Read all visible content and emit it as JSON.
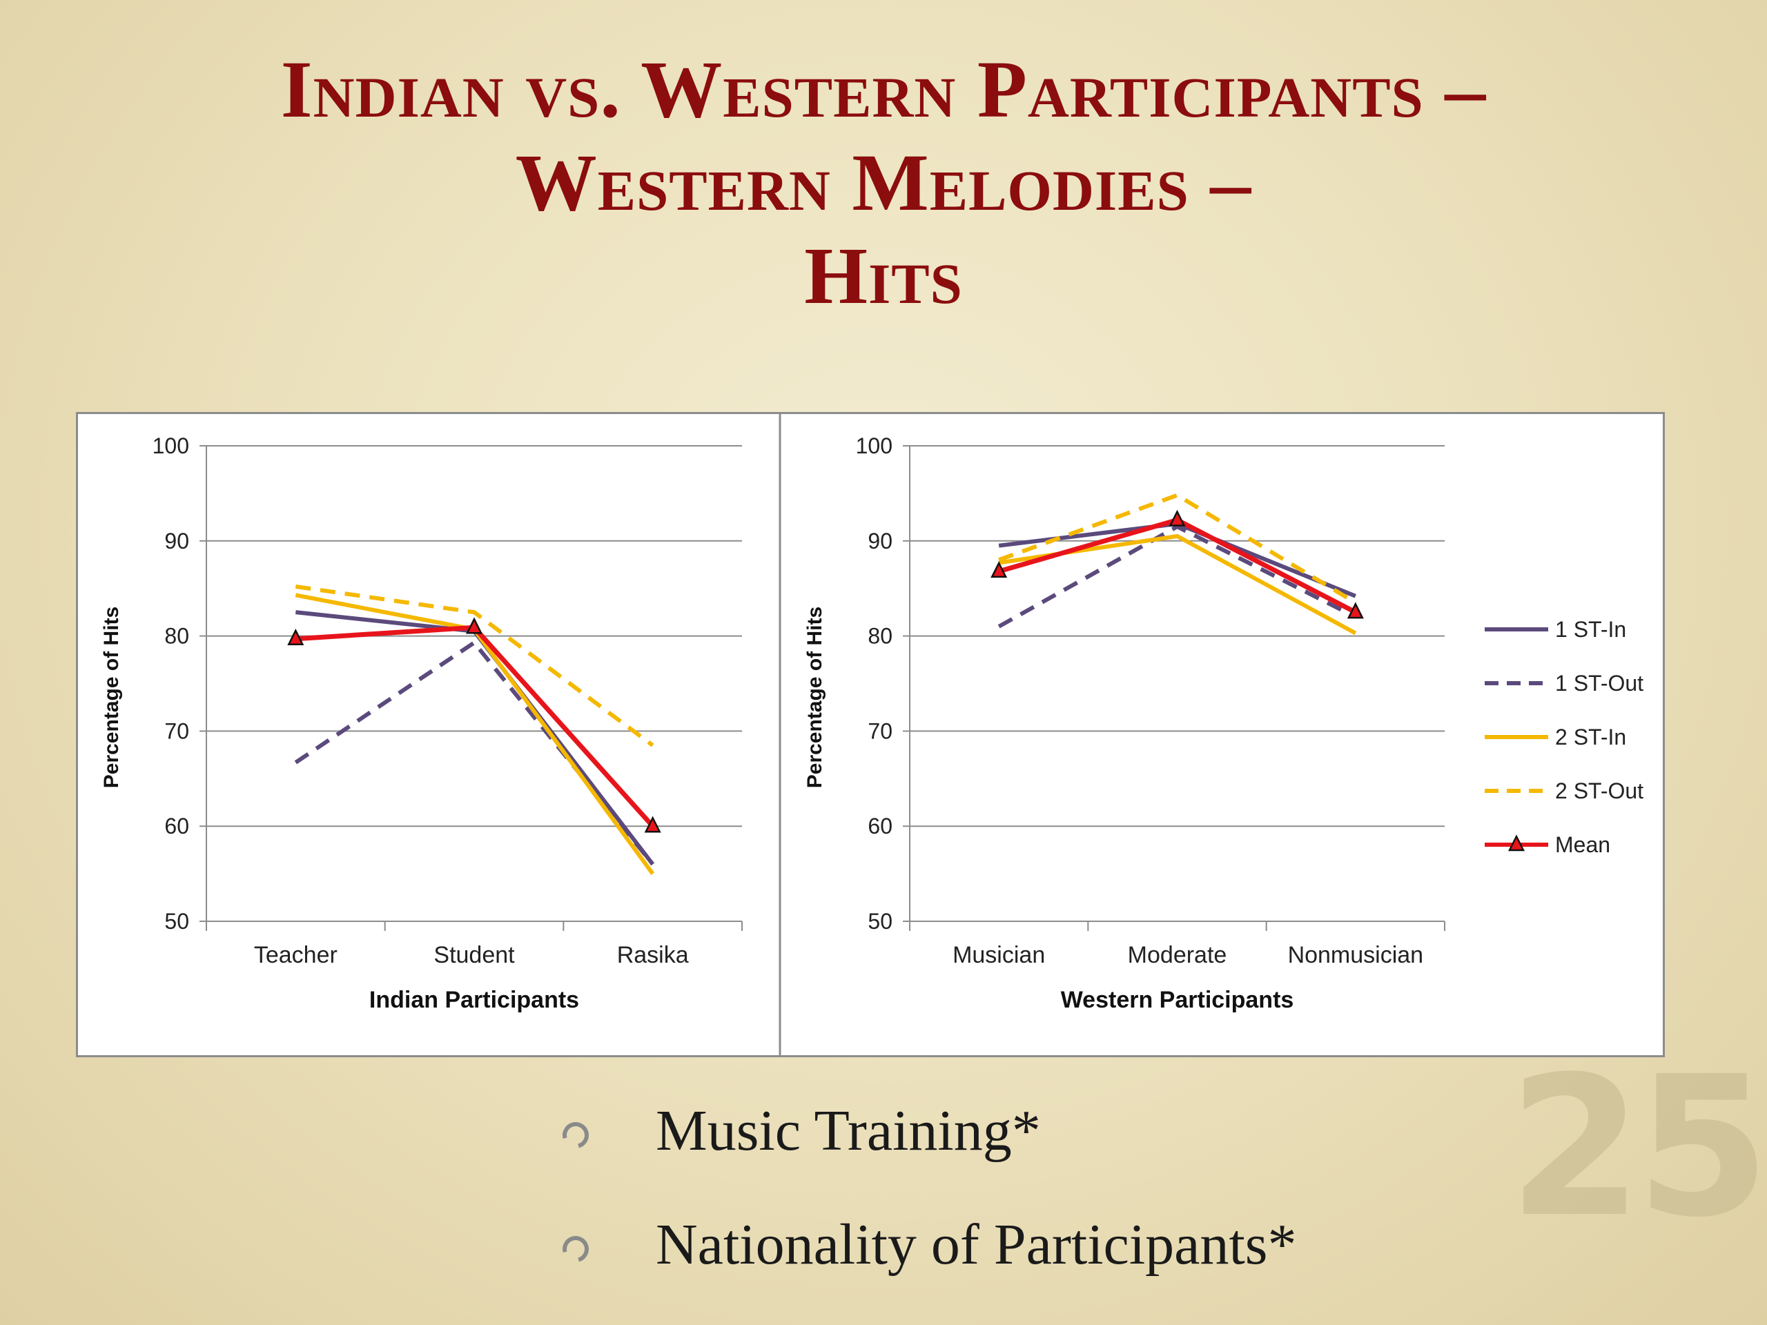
{
  "slide": {
    "title_lines": [
      "Indian vs. Western Participants –",
      "Western Melodies –",
      "Hits"
    ],
    "page_number": "25",
    "bullets": [
      "Music Training*",
      "Nationality of Participants*"
    ]
  },
  "legend": [
    {
      "name": "1 ST-In",
      "color": "#5b4a7c",
      "dash": false,
      "marker": false
    },
    {
      "name": "1 ST-Out",
      "color": "#5b4a7c",
      "dash": true,
      "marker": false
    },
    {
      "name": "2 ST-In",
      "color": "#f5b800",
      "dash": false,
      "marker": false
    },
    {
      "name": "2 ST-Out",
      "color": "#f5b800",
      "dash": true,
      "marker": false
    },
    {
      "name": "Mean",
      "color": "#e8141b",
      "dash": false,
      "marker": true
    }
  ],
  "chart_data": [
    {
      "type": "line",
      "xlabel": "Indian Participants",
      "ylabel": "Percentage of Hits",
      "ylim": [
        50,
        100
      ],
      "yticks": [
        50,
        60,
        70,
        80,
        90,
        100
      ],
      "grid": true,
      "categories": [
        "Teacher",
        "Student",
        "Rasika"
      ],
      "series": [
        {
          "name": "1 ST-In",
          "values": [
            82.5,
            80.5,
            56
          ]
        },
        {
          "name": "1 ST-Out",
          "values": [
            66.7,
            79.3,
            56
          ]
        },
        {
          "name": "2 ST-In",
          "values": [
            84.3,
            80.7,
            55
          ]
        },
        {
          "name": "2 ST-Out",
          "values": [
            85.2,
            82.5,
            68.5
          ]
        },
        {
          "name": "Mean",
          "values": [
            79.7,
            80.9,
            60
          ]
        }
      ]
    },
    {
      "type": "line",
      "xlabel": "Western Participants",
      "ylabel": "Percentage of Hits",
      "ylim": [
        50,
        100
      ],
      "yticks": [
        50,
        60,
        70,
        80,
        90,
        100
      ],
      "grid": true,
      "legend_position": "right",
      "categories": [
        "Musician",
        "Moderate",
        "Nonmusician"
      ],
      "series": [
        {
          "name": "1 ST-In",
          "values": [
            89.5,
            91.8,
            84.2
          ]
        },
        {
          "name": "1 ST-Out",
          "values": [
            81,
            91.5,
            82
          ]
        },
        {
          "name": "2 ST-In",
          "values": [
            87.7,
            90.5,
            80.3
          ]
        },
        {
          "name": "2 ST-Out",
          "values": [
            88,
            94.8,
            83.5
          ]
        },
        {
          "name": "Mean",
          "values": [
            86.8,
            92.2,
            82.5
          ]
        }
      ]
    }
  ]
}
